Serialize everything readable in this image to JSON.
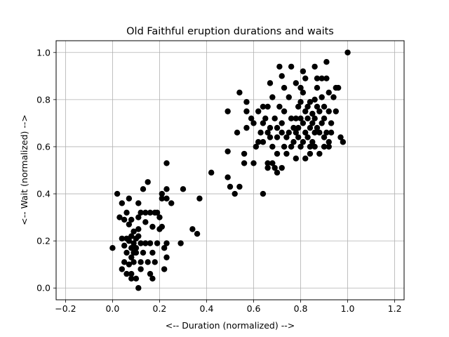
{
  "chart_data": {
    "type": "scatter",
    "title": "Old Faithful eruption durations and waits",
    "xlabel": "<-- Duration (normalized) -->",
    "ylabel": "<-- Wait (normalized) -->",
    "xlim": [
      -0.24,
      1.24
    ],
    "ylim": [
      -0.05,
      1.05
    ],
    "xticks": [
      -0.2,
      0.0,
      0.2,
      0.4,
      0.6,
      0.8,
      1.0,
      1.2
    ],
    "xtick_labels": [
      "−0.2",
      "0.0",
      "0.2",
      "0.4",
      "0.6",
      "0.8",
      "1.0",
      "1.2"
    ],
    "yticks": [
      0.0,
      0.2,
      0.4,
      0.6,
      0.8,
      1.0
    ],
    "ytick_labels": [
      "0.0",
      "0.2",
      "0.4",
      "0.6",
      "0.8",
      "1.0"
    ],
    "grid": true,
    "marker_color": "#000000",
    "series": [
      {
        "points": [
          [
            0.0,
            0.17
          ],
          [
            0.02,
            0.4
          ],
          [
            0.03,
            0.3
          ],
          [
            0.04,
            0.21
          ],
          [
            0.04,
            0.08
          ],
          [
            0.04,
            0.36
          ],
          [
            0.05,
            0.29
          ],
          [
            0.05,
            0.18
          ],
          [
            0.05,
            0.11
          ],
          [
            0.06,
            0.21
          ],
          [
            0.06,
            0.06
          ],
          [
            0.06,
            0.15
          ],
          [
            0.06,
            0.32
          ],
          [
            0.07,
            0.38
          ],
          [
            0.07,
            0.2
          ],
          [
            0.07,
            0.27
          ],
          [
            0.07,
            0.1
          ],
          [
            0.08,
            0.17
          ],
          [
            0.08,
            0.06
          ],
          [
            0.08,
            0.29
          ],
          [
            0.08,
            0.13
          ],
          [
            0.08,
            0.22
          ],
          [
            0.08,
            0.04
          ],
          [
            0.09,
            0.15
          ],
          [
            0.09,
            0.19
          ],
          [
            0.09,
            0.24
          ],
          [
            0.09,
            0.11
          ],
          [
            0.1,
            0.04
          ],
          [
            0.1,
            0.15
          ],
          [
            0.1,
            0.17
          ],
          [
            0.1,
            0.21
          ],
          [
            0.11,
            0.36
          ],
          [
            0.11,
            0.25
          ],
          [
            0.11,
            0.3
          ],
          [
            0.11,
            0.22
          ],
          [
            0.11,
            0.0
          ],
          [
            0.12,
            0.32
          ],
          [
            0.12,
            0.11
          ],
          [
            0.12,
            0.19
          ],
          [
            0.12,
            0.08
          ],
          [
            0.13,
            0.42
          ],
          [
            0.13,
            0.15
          ],
          [
            0.14,
            0.28
          ],
          [
            0.14,
            0.32
          ],
          [
            0.14,
            0.19
          ],
          [
            0.15,
            0.45
          ],
          [
            0.15,
            0.11
          ],
          [
            0.16,
            0.32
          ],
          [
            0.16,
            0.06
          ],
          [
            0.16,
            0.19
          ],
          [
            0.17,
            0.26
          ],
          [
            0.17,
            0.04
          ],
          [
            0.17,
            0.15
          ],
          [
            0.18,
            0.32
          ],
          [
            0.18,
            0.11
          ],
          [
            0.19,
            0.19
          ],
          [
            0.19,
            0.32
          ],
          [
            0.2,
            0.3
          ],
          [
            0.2,
            0.25
          ],
          [
            0.21,
            0.38
          ],
          [
            0.21,
            0.4
          ],
          [
            0.21,
            0.26
          ],
          [
            0.22,
            0.08
          ],
          [
            0.22,
            0.17
          ],
          [
            0.23,
            0.53
          ],
          [
            0.23,
            0.42
          ],
          [
            0.23,
            0.38
          ],
          [
            0.23,
            0.19
          ],
          [
            0.23,
            0.13
          ],
          [
            0.25,
            0.36
          ],
          [
            0.29,
            0.19
          ],
          [
            0.3,
            0.42
          ],
          [
            0.34,
            0.25
          ],
          [
            0.36,
            0.23
          ],
          [
            0.37,
            0.38
          ],
          [
            0.42,
            0.49
          ],
          [
            0.49,
            0.47
          ],
          [
            0.49,
            0.58
          ],
          [
            0.49,
            0.75
          ],
          [
            0.5,
            0.43
          ],
          [
            0.52,
            0.4
          ],
          [
            0.53,
            0.66
          ],
          [
            0.54,
            0.83
          ],
          [
            0.54,
            0.43
          ],
          [
            0.56,
            0.57
          ],
          [
            0.56,
            0.53
          ],
          [
            0.57,
            0.79
          ],
          [
            0.57,
            0.75
          ],
          [
            0.57,
            0.68
          ],
          [
            0.59,
            0.72
          ],
          [
            0.6,
            0.53
          ],
          [
            0.6,
            0.7
          ],
          [
            0.61,
            0.6
          ],
          [
            0.62,
            0.75
          ],
          [
            0.62,
            0.62
          ],
          [
            0.63,
            0.66
          ],
          [
            0.64,
            0.4
          ],
          [
            0.64,
            0.77
          ],
          [
            0.64,
            0.7
          ],
          [
            0.64,
            0.62
          ],
          [
            0.65,
            0.72
          ],
          [
            0.66,
            0.66
          ],
          [
            0.66,
            0.53
          ],
          [
            0.66,
            0.51
          ],
          [
            0.66,
            0.77
          ],
          [
            0.67,
            0.64
          ],
          [
            0.67,
            0.87
          ],
          [
            0.67,
            0.68
          ],
          [
            0.68,
            0.6
          ],
          [
            0.68,
            0.81
          ],
          [
            0.68,
            0.53
          ],
          [
            0.69,
            0.72
          ],
          [
            0.69,
            0.51
          ],
          [
            0.7,
            0.68
          ],
          [
            0.7,
            0.57
          ],
          [
            0.7,
            0.64
          ],
          [
            0.7,
            0.49
          ],
          [
            0.71,
            0.94
          ],
          [
            0.71,
            0.77
          ],
          [
            0.72,
            0.51
          ],
          [
            0.72,
            0.7
          ],
          [
            0.72,
            0.9
          ],
          [
            0.72,
            0.66
          ],
          [
            0.73,
            0.6
          ],
          [
            0.73,
            0.85
          ],
          [
            0.73,
            0.75
          ],
          [
            0.74,
            0.64
          ],
          [
            0.74,
            0.57
          ],
          [
            0.75,
            0.81
          ],
          [
            0.75,
            0.66
          ],
          [
            0.76,
            0.94
          ],
          [
            0.76,
            0.72
          ],
          [
            0.76,
            0.6
          ],
          [
            0.77,
            0.68
          ],
          [
            0.77,
            0.62
          ],
          [
            0.78,
            0.66
          ],
          [
            0.78,
            0.72
          ],
          [
            0.78,
            0.87
          ],
          [
            0.78,
            0.55
          ],
          [
            0.79,
            0.64
          ],
          [
            0.79,
            0.77
          ],
          [
            0.79,
            0.68
          ],
          [
            0.8,
            0.72
          ],
          [
            0.8,
            0.85
          ],
          [
            0.8,
            0.6
          ],
          [
            0.8,
            0.79
          ],
          [
            0.81,
            0.7
          ],
          [
            0.81,
            0.92
          ],
          [
            0.81,
            0.62
          ],
          [
            0.81,
            0.83
          ],
          [
            0.82,
            0.75
          ],
          [
            0.82,
            0.66
          ],
          [
            0.82,
            0.55
          ],
          [
            0.82,
            0.89
          ],
          [
            0.83,
            0.72
          ],
          [
            0.83,
            0.77
          ],
          [
            0.83,
            0.64
          ],
          [
            0.84,
            0.6
          ],
          [
            0.84,
            0.68
          ],
          [
            0.84,
            0.79
          ],
          [
            0.84,
            0.57
          ],
          [
            0.85,
            0.7
          ],
          [
            0.85,
            0.74
          ],
          [
            0.85,
            0.62
          ],
          [
            0.86,
            0.8
          ],
          [
            0.86,
            0.66
          ],
          [
            0.86,
            0.72
          ],
          [
            0.86,
            0.94
          ],
          [
            0.86,
            0.6
          ],
          [
            0.87,
            0.77
          ],
          [
            0.87,
            0.85
          ],
          [
            0.87,
            0.68
          ],
          [
            0.87,
            0.89
          ],
          [
            0.88,
            0.57
          ],
          [
            0.88,
            0.75
          ],
          [
            0.88,
            0.66
          ],
          [
            0.89,
            0.7
          ],
          [
            0.89,
            0.89
          ],
          [
            0.89,
            0.81
          ],
          [
            0.9,
            0.6
          ],
          [
            0.9,
            0.77
          ],
          [
            0.9,
            0.64
          ],
          [
            0.9,
            0.72
          ],
          [
            0.91,
            0.96
          ],
          [
            0.91,
            0.66
          ],
          [
            0.91,
            0.89
          ],
          [
            0.92,
            0.6
          ],
          [
            0.92,
            0.75
          ],
          [
            0.92,
            0.62
          ],
          [
            0.92,
            0.83
          ],
          [
            0.93,
            0.7
          ],
          [
            0.93,
            0.66
          ],
          [
            0.94,
            0.81
          ],
          [
            0.95,
            0.85
          ],
          [
            0.95,
            0.75
          ],
          [
            0.96,
            0.85
          ],
          [
            0.97,
            0.64
          ],
          [
            0.98,
            0.62
          ],
          [
            1.0,
            1.0
          ]
        ]
      }
    ]
  }
}
